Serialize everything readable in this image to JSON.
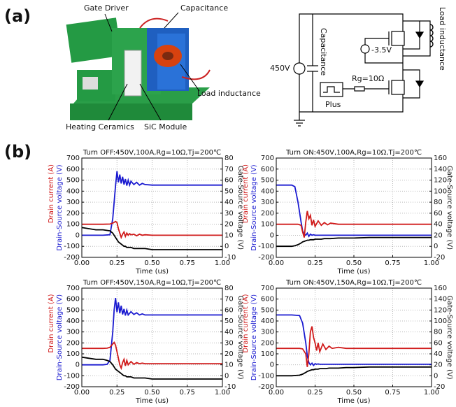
{
  "panel_labels": [
    "(a)",
    "(b)"
  ],
  "photo": {
    "labels": [
      "Gate Driver",
      "Capacitance",
      "Load inductance",
      "Heating Ceramics",
      "SiC Module"
    ]
  },
  "circuit": {
    "labels": [
      "450V",
      "Capacitance",
      "-3.5V",
      "Load inductance",
      "Rg=10Ω",
      "Plus"
    ]
  },
  "chart_data": [
    {
      "type": "line",
      "title": "Turn OFF:450V,100A,Rg=10Ω,Tj=200℃",
      "x": [
        0,
        0.05,
        0.1,
        0.15,
        0.2,
        0.22,
        0.24,
        0.25,
        0.26,
        0.27,
        0.28,
        0.29,
        0.3,
        0.31,
        0.32,
        0.33,
        0.34,
        0.35,
        0.37,
        0.39,
        0.41,
        0.43,
        0.45,
        0.5,
        0.6,
        0.7,
        0.8,
        0.9,
        1.0
      ],
      "series": [
        {
          "color": "#1a1ad0",
          "values": [
            0,
            0,
            0,
            0,
            5,
            150,
            450,
            580,
            480,
            550,
            470,
            530,
            460,
            510,
            450,
            500,
            455,
            490,
            460,
            480,
            455,
            470,
            460,
            455,
            455,
            455,
            455,
            455,
            455
          ]
        },
        {
          "color": "#d01a1a",
          "values": [
            100,
            100,
            100,
            100,
            102,
            110,
            125,
            115,
            60,
            20,
            -20,
            10,
            30,
            -10,
            20,
            0,
            15,
            5,
            10,
            -5,
            10,
            0,
            5,
            0,
            0,
            0,
            0,
            0,
            0
          ]
        },
        {
          "color": "#000000",
          "axis": "y2",
          "values": [
            17,
            16,
            15,
            15,
            14,
            12,
            8,
            6,
            4,
            3,
            2,
            1,
            0,
            0,
            -1,
            -1,
            -1,
            -1,
            -2,
            -2,
            -2,
            -2,
            -2,
            -3,
            -3,
            -3,
            -3,
            -3,
            -3
          ]
        }
      ],
      "xlabel": "Time (us)",
      "ylabel": [
        "Drain current (A)",
        "Drain-Source voltage (V)"
      ],
      "y2label": "Gate-Source voltage (V)",
      "xlim": [
        0,
        1
      ],
      "xticks": [
        {
          "value": 0,
          "label": "0.00"
        },
        0.25,
        {
          "value": 0.5,
          "label": "0.50"
        },
        0.75,
        {
          "value": 1,
          "label": "1.00"
        }
      ],
      "ylim": [
        -200,
        700
      ],
      "yticks": [
        -200,
        -100,
        0,
        100,
        200,
        300,
        400,
        500,
        600,
        700
      ],
      "y2lim": [
        -10,
        80
      ],
      "y2ticks": [
        -10,
        0,
        10,
        20,
        30,
        40,
        50,
        60,
        70,
        80
      ],
      "grid": true
    },
    {
      "type": "line",
      "title": "Turn ON:450V,100A,Rg=10Ω,Tj=200℃",
      "x": [
        0,
        0.05,
        0.1,
        0.12,
        0.14,
        0.16,
        0.17,
        0.18,
        0.19,
        0.2,
        0.21,
        0.22,
        0.23,
        0.24,
        0.25,
        0.27,
        0.29,
        0.31,
        0.33,
        0.35,
        0.4,
        0.5,
        0.6,
        0.7,
        0.8,
        0.9,
        1.0
      ],
      "series": [
        {
          "color": "#1a1ad0",
          "values": [
            455,
            455,
            455,
            440,
            300,
            120,
            40,
            10,
            0,
            20,
            -10,
            10,
            0,
            5,
            0,
            0,
            0,
            0,
            0,
            0,
            0,
            0,
            0,
            0,
            0,
            0,
            0
          ]
        },
        {
          "color": "#d01a1a",
          "values": [
            100,
            100,
            100,
            100,
            100,
            90,
            30,
            -20,
            120,
            220,
            150,
            180,
            90,
            140,
            80,
            130,
            90,
            115,
            95,
            110,
            100,
            100,
            100,
            100,
            100,
            100,
            100
          ]
        },
        {
          "color": "#000000",
          "axis": "y2",
          "values": [
            0,
            0,
            0,
            1,
            3,
            6,
            8,
            9,
            10,
            11,
            11,
            12,
            12,
            12,
            13,
            13,
            13,
            14,
            14,
            14,
            15,
            15,
            16,
            16,
            16,
            16,
            16
          ]
        }
      ],
      "xlabel": "Time (us)",
      "ylabel": [
        "Drain current (A)",
        "Drain-Source voltage (V)"
      ],
      "y2label": "Gate-Source voltage (V)",
      "xlim": [
        0,
        1
      ],
      "xticks": [
        {
          "value": 0,
          "label": "0.00"
        },
        0.25,
        {
          "value": 0.5,
          "label": "0.50"
        },
        0.75,
        {
          "value": 1,
          "label": "1.00"
        }
      ],
      "ylim": [
        -200,
        700
      ],
      "yticks": [
        -200,
        -100,
        0,
        100,
        200,
        300,
        400,
        500,
        600,
        700
      ],
      "y2lim": [
        -20,
        160
      ],
      "y2ticks": [
        -20,
        0,
        20,
        40,
        60,
        80,
        100,
        120,
        140,
        160
      ],
      "grid": true
    },
    {
      "type": "line",
      "title": "Turn OFF:450V,150A,Rg=10Ω,Tj=200℃",
      "x": [
        0,
        0.05,
        0.1,
        0.15,
        0.18,
        0.2,
        0.22,
        0.23,
        0.24,
        0.25,
        0.26,
        0.27,
        0.28,
        0.29,
        0.3,
        0.31,
        0.32,
        0.33,
        0.35,
        0.37,
        0.39,
        0.41,
        0.43,
        0.45,
        0.5,
        0.6,
        0.7,
        0.8,
        0.9,
        1.0
      ],
      "series": [
        {
          "color": "#1a1ad0",
          "values": [
            0,
            0,
            0,
            0,
            5,
            40,
            300,
            500,
            610,
            480,
            570,
            470,
            540,
            460,
            510,
            450,
            500,
            455,
            485,
            460,
            475,
            455,
            465,
            455,
            455,
            455,
            455,
            455,
            455,
            455
          ]
        },
        {
          "color": "#d01a1a",
          "values": [
            150,
            150,
            150,
            150,
            152,
            160,
            190,
            205,
            180,
            120,
            60,
            0,
            -30,
            20,
            50,
            -10,
            40,
            0,
            30,
            5,
            20,
            10,
            15,
            10,
            10,
            10,
            10,
            10,
            10,
            10
          ]
        },
        {
          "color": "#000000",
          "axis": "y2",
          "values": [
            17,
            16,
            15,
            15,
            14,
            13,
            10,
            8,
            6,
            5,
            4,
            3,
            2,
            1,
            0,
            0,
            -1,
            -1,
            -1,
            -2,
            -2,
            -2,
            -2,
            -2,
            -3,
            -3,
            -3,
            -3,
            -3,
            -3
          ]
        }
      ],
      "xlabel": "Time (us)",
      "ylabel": [
        "Drain current (A)",
        "Drain-Source voltage (V)"
      ],
      "y2label": "Gate-Source voltage (V)",
      "xlim": [
        0,
        1
      ],
      "xticks": [
        {
          "value": 0,
          "label": "0.00"
        },
        0.25,
        {
          "value": 0.5,
          "label": "0.50"
        },
        0.75,
        {
          "value": 1,
          "label": "1.00"
        }
      ],
      "ylim": [
        -200,
        700
      ],
      "yticks": [
        -200,
        -100,
        0,
        100,
        200,
        300,
        400,
        500,
        600,
        700
      ],
      "y2lim": [
        -10,
        80
      ],
      "y2ticks": [
        -10,
        0,
        10,
        20,
        30,
        40,
        50,
        60,
        70,
        80
      ],
      "grid": true
    },
    {
      "type": "line",
      "title": "Turn ON:450V,150A,Rg=10Ω,Tj=200℃",
      "x": [
        0,
        0.05,
        0.1,
        0.15,
        0.17,
        0.19,
        0.2,
        0.21,
        0.22,
        0.23,
        0.24,
        0.25,
        0.26,
        0.27,
        0.28,
        0.3,
        0.32,
        0.34,
        0.36,
        0.4,
        0.45,
        0.5,
        0.6,
        0.7,
        0.8,
        0.9,
        1.0
      ],
      "series": [
        {
          "color": "#1a1ad0",
          "values": [
            455,
            455,
            455,
            450,
            380,
            200,
            80,
            20,
            0,
            15,
            -5,
            10,
            5,
            8,
            5,
            5,
            5,
            5,
            5,
            5,
            5,
            5,
            5,
            5,
            5,
            5,
            5
          ]
        },
        {
          "color": "#d01a1a",
          "values": [
            150,
            150,
            150,
            150,
            145,
            100,
            -20,
            100,
            300,
            350,
            250,
            200,
            130,
            200,
            120,
            190,
            140,
            170,
            150,
            160,
            150,
            150,
            150,
            150,
            150,
            150,
            150
          ]
        },
        {
          "color": "#000000",
          "axis": "y2",
          "values": [
            0,
            0,
            0,
            1,
            3,
            6,
            8,
            9,
            10,
            11,
            11,
            12,
            12,
            12,
            13,
            13,
            13,
            14,
            14,
            14,
            15,
            15,
            16,
            16,
            16,
            16,
            16
          ]
        }
      ],
      "xlabel": "Time (us)",
      "ylabel": [
        "Drain current (A)",
        "Drain-Source voltage (V)"
      ],
      "y2label": "Gate-Source voltage (V)",
      "xlim": [
        0,
        1
      ],
      "xticks": [
        {
          "value": 0,
          "label": "0.00"
        },
        0.25,
        {
          "value": 0.5,
          "label": "0.50"
        },
        0.75,
        {
          "value": 1,
          "label": "1.00"
        }
      ],
      "ylim": [
        -200,
        700
      ],
      "yticks": [
        -200,
        -100,
        0,
        100,
        200,
        300,
        400,
        500,
        600,
        700
      ],
      "y2lim": [
        -20,
        160
      ],
      "y2ticks": [
        -20,
        0,
        20,
        40,
        60,
        80,
        100,
        120,
        140,
        160
      ],
      "grid": true
    }
  ]
}
